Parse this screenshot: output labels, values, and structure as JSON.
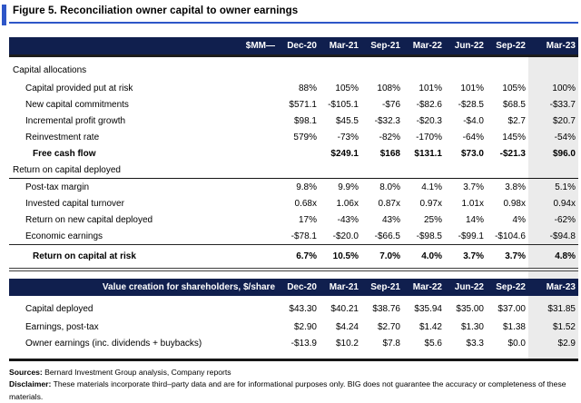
{
  "title": "Figure 5. Reconciliation owner capital to owner earnings",
  "columns": [
    "Dec-20",
    "Mar-21",
    "Sep-21",
    "Mar-22",
    "Jun-22",
    "Sep-22",
    "Mar-23"
  ],
  "section_mm": {
    "corner": "$MM—",
    "rows": [
      {
        "label": "Capital allocations",
        "v": [
          "",
          "",
          "",
          "",
          "",
          "",
          ""
        ]
      },
      {
        "label": "Capital provided put at risk",
        "v": [
          "88%",
          "105%",
          "108%",
          "101%",
          "101%",
          "105%",
          "100%"
        ]
      },
      {
        "label": "New capital commitments",
        "v": [
          "$571.1",
          "-$105.1",
          "-$76",
          "-$82.6",
          "-$28.5",
          "$68.5",
          "-$33.7"
        ]
      },
      {
        "label": "Incremental profit growth",
        "v": [
          "$98.1",
          "$45.5",
          "-$32.3",
          "-$20.3",
          "-$4.0",
          "$2.7",
          "$20.7"
        ]
      },
      {
        "label": "Reinvestment rate",
        "v": [
          "579%",
          "-73%",
          "-82%",
          "-170%",
          "-64%",
          "145%",
          "-54%"
        ]
      },
      {
        "label": "Free cash flow",
        "v": [
          "",
          "$249.1",
          "$168",
          "$131.1",
          "$73.0",
          "-$21.3",
          "$96.0"
        ]
      },
      {
        "label": "Return on capital deployed",
        "v": [
          "",
          "",
          "",
          "",
          "",
          "",
          ""
        ]
      },
      {
        "label": "Post-tax margin",
        "v": [
          "9.8%",
          "9.9%",
          "8.0%",
          "4.1%",
          "3.7%",
          "3.8%",
          "5.1%"
        ]
      },
      {
        "label": "Invested capital turnover",
        "v": [
          "0.68x",
          "1.06x",
          "0.87x",
          "0.97x",
          "1.01x",
          "0.98x",
          "0.94x"
        ]
      },
      {
        "label": "Return on new capital deployed",
        "v": [
          "17%",
          "-43%",
          "43%",
          "25%",
          "14%",
          "4%",
          "-62%"
        ]
      },
      {
        "label": "Economic earnings",
        "v": [
          "-$78.1",
          "-$20.0",
          "-$66.5",
          "-$98.5",
          "-$99.1",
          "-$104.6",
          "-$94.8"
        ]
      },
      {
        "label": "Return on capital at risk",
        "v": [
          "6.7%",
          "10.5%",
          "7.0%",
          "4.0%",
          "3.7%",
          "3.7%",
          "4.8%"
        ]
      }
    ]
  },
  "section_value": {
    "corner": "Value creation for shareholders, $/share",
    "rows": [
      {
        "label": "Capital deployed",
        "v": [
          "$43.30",
          "$40.21",
          "$38.76",
          "$35.94",
          "$35.00",
          "$37.00",
          "$31.85"
        ]
      },
      {
        "label": "Earnings, post-tax",
        "v": [
          "$2.90",
          "$4.24",
          "$2.70",
          "$1.42",
          "$1.30",
          "$1.38",
          "$1.52"
        ]
      },
      {
        "label": "Owner earnings (inc. dividends + buybacks)",
        "v": [
          "-$13.9",
          "$10.2",
          "$7.8",
          "$5.6",
          "$3.3",
          "$0.0",
          "$2.9"
        ]
      }
    ]
  },
  "footer": {
    "sources_label": "Sources:",
    "sources_text": " Bernard Investment Group analysis, Company reports",
    "disclaimer_label": "Disclaimer:",
    "disclaimer_text": " These materials incorporate third–party data and are for informational purposes only. BIG does not guarantee the accuracy or completeness of these materials."
  },
  "colors": {
    "navy_header": "#101f4e",
    "accent_blue": "#2e56c8",
    "highlight_column": "#ebebeb"
  }
}
